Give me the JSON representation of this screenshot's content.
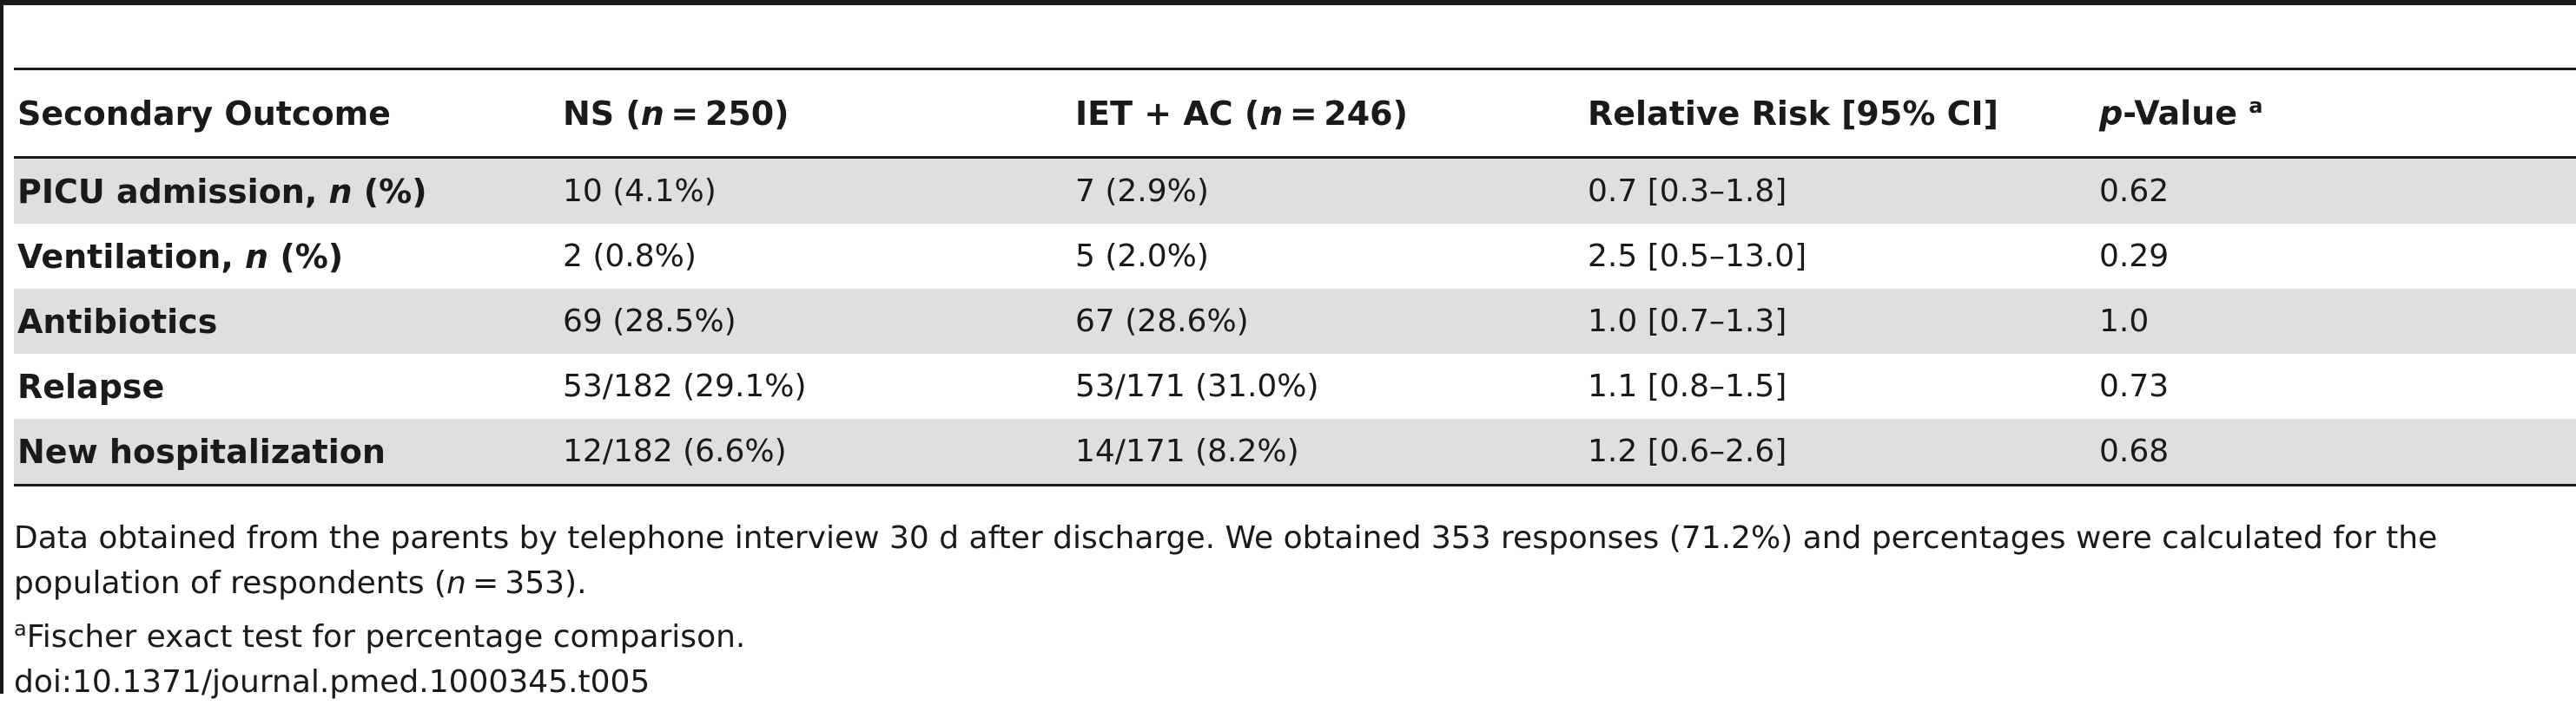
{
  "table": {
    "headers": {
      "outcome": "Secondary Outcome",
      "ns_prefix": "NS (",
      "n_symbol": "n",
      "ns_suffix": " = 250)",
      "iet_prefix": "IET + AC (",
      "iet_suffix": " = 246)",
      "rr": "Relative Risk [95% CI]",
      "p_symbol": "p",
      "p_suffix": "-Value ",
      "p_mark": "a"
    },
    "rows": [
      {
        "label": "PICU admission, ",
        "label_italic": "n",
        "label_suffix": " (%)",
        "ns": "10 (4.1%)",
        "iet": "7 (2.9%)",
        "rr": "0.7 [0.3–1.8]",
        "p": "0.62"
      },
      {
        "label": "Ventilation, ",
        "label_italic": "n",
        "label_suffix": " (%)",
        "ns": "2 (0.8%)",
        "iet": "5 (2.0%)",
        "rr": "2.5 [0.5–13.0]",
        "p": "0.29"
      },
      {
        "label": "Antibiotics",
        "ns": "69 (28.5%)",
        "iet": "67 (28.6%)",
        "rr": "1.0 [0.7–1.3]",
        "p": "1.0"
      },
      {
        "label": "Relapse",
        "ns": "53/182 (29.1%)",
        "iet": "53/171 (31.0%)",
        "rr": "1.1 [0.8–1.5]",
        "p": "0.73"
      },
      {
        "label": "New hospitalization",
        "ns": "12/182 (6.6%)",
        "iet": "14/171 (8.2%)",
        "rr": "1.2 [0.6–2.6]",
        "p": "0.68"
      }
    ]
  },
  "footnotes": {
    "note1_part1": "Data obtained from the parents by telephone interview 30 d after discharge. We obtained 353 responses (71.2%) and percentages were calculated for the population of respondents (",
    "note1_n": "n",
    "note1_part2": " = 353).",
    "note2_mark": "a",
    "note2_text": "Fischer exact test for percentage comparison.",
    "doi": "doi:10.1371/journal.pmed.1000345.t005"
  }
}
